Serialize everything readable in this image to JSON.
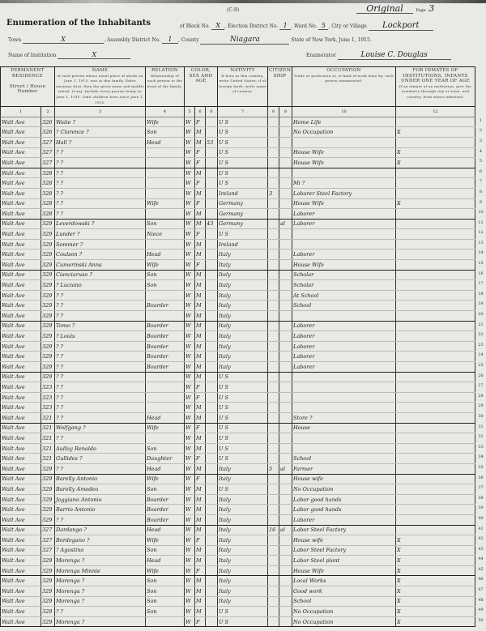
{
  "header": {
    "form_code": "(C-8)",
    "title": "Enumeration of the Inhabitants",
    "block_label": "of Block No.",
    "block_value": "X",
    "election_district_label": "Election District No.",
    "election_district_value": "1",
    "ward_label": "Ward No.",
    "ward_value": "5",
    "city_label": "City or Village",
    "city_value": "Lockport",
    "original_text": "Original",
    "page_label": "Page",
    "page_value": "3",
    "town_label": "Town",
    "town_value": "X",
    "assembly_label": "Assembly District No.",
    "assembly_value": "1",
    "county_label": "County",
    "county_value": "Niagara",
    "state_text": "State of New York, June 1, 1915.",
    "institution_label": "Name of Institution",
    "institution_value": "X",
    "enumerator_label": "Enumerator",
    "enumerator_value": "Louise C. Douglas"
  },
  "columns": {
    "residence": "PERMANENT RESIDENCE",
    "street": "Street",
    "house_number": "House Number",
    "name": "NAME",
    "name_desc": "of each person whose usual place of abode on June 1, 1915, was in this family. Enter surname first, then the given name and middle initial, if any. Include every person living on June 1, 1915. Omit children born since June 1, 1915.",
    "relation": "RELATION",
    "relation_desc": "Relationship of each person to the head of the family.",
    "color_sex_age": "COLOR, SEX AND AGE",
    "nativity": "NATIVITY",
    "nativity_desc": "If born in this country, write United States; if of foreign birth, write name of country.",
    "citizenship": "CITIZEN-SHIP",
    "occupation": "OCCUPATION",
    "occupation_desc": "Trade or profession of, or kind of work done by, each person enumerated.",
    "institution": "FOR INMATES OF INSTITUTIONS, INFANTS UNDER ONE YEAR OF AGE",
    "institution_desc": "If an inmate of an institution, give the residence through city or town, and country, from where admitted.",
    "col_numbers": [
      "1",
      "2",
      "3",
      "4",
      "5",
      "6",
      "7",
      "8",
      "9",
      "10",
      "11",
      "12"
    ]
  },
  "rows": [
    [
      "Walt Ave",
      "326",
      "Waite ?",
      "Wife",
      "W",
      "F",
      "",
      "U S",
      "",
      "",
      "Home Life",
      ""
    ],
    [
      "Walt Ave",
      "326",
      "? Clarence ?",
      "Son",
      "W",
      "M",
      "",
      "U S",
      "",
      "",
      "No Occupation",
      "X"
    ],
    [
      "Walt Ave",
      "327",
      "Hall ?",
      "Head",
      "W",
      "M",
      "53",
      "U S",
      "",
      "",
      "",
      ""
    ],
    [
      "Walt Ave",
      "327",
      "? ?",
      "",
      "W",
      "F",
      "",
      "U S",
      "",
      "",
      "House Wife",
      "X"
    ],
    [
      "Walt Ave",
      "327",
      "? ?",
      "",
      "W",
      "F",
      "",
      "U S",
      "",
      "",
      "House Wife",
      "X"
    ],
    [
      "Walt Ave",
      "328",
      "? ?",
      "",
      "W",
      "M",
      "",
      "U S",
      "",
      "",
      "",
      ""
    ],
    [
      "Walt Ave",
      "328",
      "? ?",
      "",
      "W",
      "F",
      "",
      "U S",
      "",
      "",
      "Mi ?",
      ""
    ],
    [
      "Walt Ave",
      "328",
      "? ?",
      "",
      "W",
      "M",
      "",
      "Ireland",
      "3",
      "",
      "Laborer Steel Factory",
      ""
    ],
    [
      "Walt Ave",
      "328",
      "? ?",
      "Wife",
      "W",
      "F",
      "",
      "Germany",
      "",
      "",
      "House Wife",
      "X"
    ],
    [
      "Walt Ave",
      "328",
      "? ?",
      "",
      "W",
      "M",
      "",
      "Germany",
      "",
      "",
      "Laborer",
      ""
    ],
    [
      "Walt Ave",
      "329",
      "Leverdowski ?",
      "Son",
      "W",
      "M",
      "43",
      "Germany",
      "",
      "al",
      "Laborer",
      ""
    ],
    [
      "Walt Ave",
      "329",
      "Lunder ?",
      "Niece",
      "W",
      "F",
      "",
      "U S",
      "",
      "",
      "",
      ""
    ],
    [
      "Walt Ave",
      "329",
      "Sommer ?",
      "",
      "W",
      "M",
      "",
      "Ireland",
      "",
      "",
      "",
      ""
    ],
    [
      "Walt Ave",
      "329",
      "Coulson ?",
      "Head",
      "W",
      "M",
      "",
      "Italy",
      "",
      "",
      "Laborer",
      ""
    ],
    [
      "Walt Ave",
      "329",
      "Cumerinski Anna",
      "Wife",
      "W",
      "F",
      "",
      "Italy",
      "",
      "",
      "House Wife",
      ""
    ],
    [
      "Walt Ave",
      "329",
      "Cianciaruso ?",
      "Son",
      "W",
      "M",
      "",
      "Italy",
      "",
      "",
      "Scholar",
      ""
    ],
    [
      "Walt Ave",
      "329",
      "? Luciano",
      "Son",
      "W",
      "M",
      "",
      "Italy",
      "",
      "",
      "Scholar",
      ""
    ],
    [
      "Walt Ave",
      "329",
      "? ?",
      "",
      "W",
      "M",
      "",
      "Italy",
      "",
      "",
      "At School",
      ""
    ],
    [
      "Walt Ave",
      "329",
      "? ?",
      "Boarder",
      "W",
      "M",
      "",
      "Italy",
      "",
      "",
      "School",
      ""
    ],
    [
      "Walt Ave",
      "329",
      "? ?",
      "",
      "W",
      "M",
      "",
      "Italy",
      "",
      "",
      "",
      ""
    ],
    [
      "Walt Ave",
      "329",
      "Tomo ?",
      "Boarder",
      "W",
      "M",
      "",
      "Italy",
      "",
      "",
      "Laborer",
      ""
    ],
    [
      "Walt Ave",
      "329",
      "? Louis",
      "Boarder",
      "W",
      "M",
      "",
      "Italy",
      "",
      "",
      "Laborer",
      ""
    ],
    [
      "Walt Ave",
      "329",
      "? ?",
      "Boarder",
      "W",
      "M",
      "",
      "Italy",
      "",
      "",
      "Laborer",
      ""
    ],
    [
      "Walt Ave",
      "329",
      "? ?",
      "Boarder",
      "W",
      "M",
      "",
      "Italy",
      "",
      "",
      "Laborer",
      ""
    ],
    [
      "Walt Ave",
      "329",
      "? ?",
      "Boarder",
      "W",
      "M",
      "",
      "Italy",
      "",
      "",
      "Laborer",
      ""
    ],
    [
      "Walt Ave",
      "329",
      "? ?",
      "",
      "W",
      "M",
      "",
      "U S",
      "",
      "",
      "",
      ""
    ],
    [
      "Walt Ave",
      "323",
      "? ?",
      "",
      "W",
      "F",
      "",
      "U S",
      "",
      "",
      "",
      ""
    ],
    [
      "Walt Ave",
      "323",
      "? ?",
      "",
      "W",
      "F",
      "",
      "U S",
      "",
      "",
      "",
      ""
    ],
    [
      "Walt Ave",
      "323",
      "? ?",
      "",
      "W",
      "M",
      "",
      "U S",
      "",
      "",
      "",
      ""
    ],
    [
      "Walt Ave",
      "321",
      "? ?",
      "Head",
      "W",
      "M",
      "",
      "U S",
      "",
      "",
      "Store ?",
      ""
    ],
    [
      "Walt Ave",
      "321",
      "Wolfgang ?",
      "Wife",
      "W",
      "F",
      "",
      "U S",
      "",
      "",
      "House",
      ""
    ],
    [
      "Walt Ave",
      "321",
      "? ?",
      "",
      "W",
      "M",
      "",
      "U S",
      "",
      "",
      "",
      ""
    ],
    [
      "Walt Ave",
      "321",
      "Aulluy Renaldo",
      "Son",
      "W",
      "M",
      "",
      "U S",
      "",
      "",
      "",
      ""
    ],
    [
      "Walt Ave",
      "321",
      "Gullides ?",
      "Daughter",
      "W",
      "F",
      "",
      "U S",
      "",
      "",
      "School",
      ""
    ],
    [
      "Walt Ave",
      "329",
      "? ?",
      "Head",
      "W",
      "M",
      "",
      "Italy",
      "5",
      "al",
      "Farmer",
      ""
    ],
    [
      "Walt Ave",
      "329",
      "Barelly Antonio",
      "Wife",
      "W",
      "F",
      "",
      "Italy",
      "",
      "",
      "House wife",
      ""
    ],
    [
      "Walt Ave",
      "329",
      "Barelly Amedeo",
      "Son",
      "W",
      "M",
      "",
      "U S",
      "",
      "",
      "No Occupation",
      ""
    ],
    [
      "Walt Ave",
      "329",
      "Joggiano Antonio",
      "Boarder",
      "W",
      "M",
      "",
      "Italy",
      "",
      "",
      "Labor good hands",
      ""
    ],
    [
      "Walt Ave",
      "329",
      "Barrio Antonio",
      "Boarder",
      "W",
      "M",
      "",
      "Italy",
      "",
      "",
      "Labor good hands",
      ""
    ],
    [
      "Walt Ave",
      "329",
      "? ?",
      "Boarder",
      "W",
      "M",
      "",
      "Italy",
      "",
      "",
      "Laborer",
      ""
    ],
    [
      "Walt Ave",
      "327",
      "Dardango ?",
      "Head",
      "W",
      "M",
      "",
      "Italy",
      "16",
      "al",
      "Labor Steel Factory",
      ""
    ],
    [
      "Walt Ave",
      "327",
      "Bordegano ?",
      "Wife",
      "W",
      "F",
      "",
      "Italy",
      "",
      "",
      "House wife",
      "X"
    ],
    [
      "Walt Ave",
      "327",
      "? Agostino",
      "Son",
      "W",
      "M",
      "",
      "Italy",
      "",
      "",
      "Labor Steel Factory",
      "X"
    ],
    [
      "Walt Ave",
      "329",
      "Morenga ?",
      "Head",
      "W",
      "M",
      "",
      "Italy",
      "",
      "",
      "Labor Steel plant",
      "X"
    ],
    [
      "Walt Ave",
      "329",
      "Morenga Minnie",
      "Wife",
      "W",
      "F",
      "",
      "Italy",
      "",
      "",
      "House Wife",
      "X"
    ],
    [
      "Walt Ave",
      "329",
      "Morenga ?",
      "Son",
      "W",
      "M",
      "",
      "Italy",
      "",
      "",
      "Local Works",
      "X"
    ],
    [
      "Walt Ave",
      "329",
      "Morenga ?",
      "Son",
      "W",
      "M",
      "",
      "Italy",
      "",
      "",
      "Good work",
      "X"
    ],
    [
      "Walt Ave",
      "329",
      "Morenga ?",
      "Son",
      "W",
      "M",
      "",
      "Italy",
      "",
      "",
      "School",
      "X"
    ],
    [
      "Walt Ave",
      "329",
      "? ?",
      "Son",
      "W",
      "M",
      "",
      "U S",
      "",
      "",
      "No Occupation",
      "X"
    ],
    [
      "Walt Ave",
      "329",
      "Morenga ?",
      "",
      "W",
      "F",
      "",
      "U S",
      "",
      "",
      "No Occupation",
      "X"
    ]
  ]
}
